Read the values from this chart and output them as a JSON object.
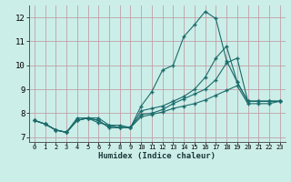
{
  "title": "",
  "xlabel": "Humidex (Indice chaleur)",
  "ylabel": "",
  "bg_color": "#cceee8",
  "line_color": "#1a6b6b",
  "grid_color": "#c0a0a8",
  "xlim": [
    -0.5,
    23.5
  ],
  "ylim": [
    6.8,
    12.5
  ],
  "yticks": [
    7,
    8,
    9,
    10,
    11,
    12
  ],
  "xticks": [
    0,
    1,
    2,
    3,
    4,
    5,
    6,
    7,
    8,
    9,
    10,
    11,
    12,
    13,
    14,
    15,
    16,
    17,
    18,
    19,
    20,
    21,
    22,
    23
  ],
  "lines": [
    {
      "x": [
        0,
        1,
        2,
        3,
        4,
        5,
        6,
        7,
        8,
        9,
        10,
        11,
        12,
        13,
        14,
        15,
        16,
        17,
        18,
        19,
        20,
        21,
        22,
        23
      ],
      "y": [
        7.7,
        7.55,
        7.3,
        7.2,
        7.8,
        7.8,
        7.6,
        7.5,
        7.4,
        7.4,
        8.3,
        8.9,
        9.8,
        10.0,
        11.2,
        11.7,
        12.25,
        11.95,
        10.2,
        9.3,
        8.5,
        8.5,
        8.5,
        8.5
      ]
    },
    {
      "x": [
        0,
        1,
        2,
        3,
        4,
        5,
        6,
        7,
        8,
        9,
        10,
        11,
        12,
        13,
        14,
        15,
        16,
        17,
        18,
        19,
        20,
        21,
        22,
        23
      ],
      "y": [
        7.7,
        7.55,
        7.3,
        7.2,
        7.7,
        7.8,
        7.8,
        7.5,
        7.5,
        7.4,
        8.1,
        8.2,
        8.3,
        8.5,
        8.7,
        9.0,
        9.5,
        10.3,
        10.8,
        9.3,
        8.5,
        8.5,
        8.5,
        8.5
      ]
    },
    {
      "x": [
        0,
        1,
        2,
        3,
        4,
        5,
        6,
        7,
        8,
        9,
        10,
        11,
        12,
        13,
        14,
        15,
        16,
        17,
        18,
        19,
        20,
        21,
        22,
        23
      ],
      "y": [
        7.7,
        7.55,
        7.3,
        7.2,
        7.7,
        7.8,
        7.7,
        7.4,
        7.4,
        7.4,
        7.95,
        8.0,
        8.15,
        8.4,
        8.6,
        8.8,
        9.0,
        9.4,
        10.1,
        10.3,
        8.5,
        8.5,
        8.5,
        8.5
      ]
    },
    {
      "x": [
        0,
        1,
        2,
        3,
        4,
        5,
        6,
        7,
        8,
        9,
        10,
        11,
        12,
        13,
        14,
        15,
        16,
        17,
        18,
        19,
        20,
        21,
        22,
        23
      ],
      "y": [
        7.7,
        7.55,
        7.3,
        7.2,
        7.7,
        7.8,
        7.7,
        7.4,
        7.4,
        7.4,
        7.85,
        7.95,
        8.05,
        8.2,
        8.3,
        8.4,
        8.55,
        8.75,
        8.95,
        9.15,
        8.4,
        8.4,
        8.4,
        8.5
      ]
    }
  ]
}
